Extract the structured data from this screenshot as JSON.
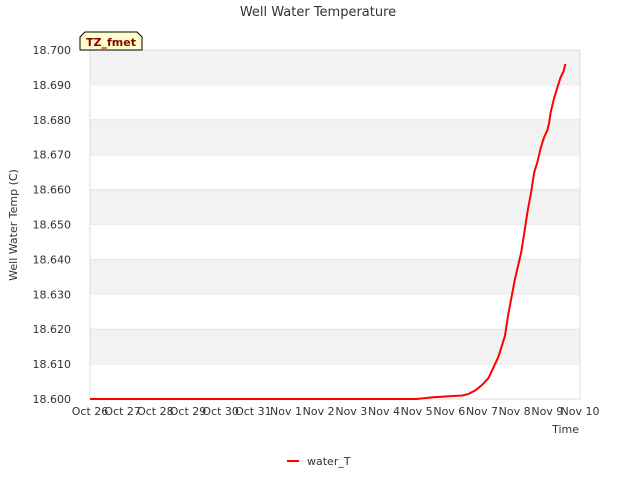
{
  "colors": {
    "line": "#ff0000",
    "band": "#f2f2f2",
    "badge_bg": "#ffffcc",
    "badge_text": "#8b0000"
  },
  "chart_data": {
    "type": "line",
    "title": "Well Water Temperature",
    "xlabel": "Time",
    "ylabel": "Well Water Temp (C)",
    "site_badge": "TZ_fmet",
    "x_ticks": [
      "Oct 26",
      "Oct 27",
      "Oct 28",
      "Oct 29",
      "Oct 30",
      "Oct 31",
      "Nov 1",
      "Nov 2",
      "Nov 3",
      "Nov 4",
      "Nov 5",
      "Nov 6",
      "Nov 7",
      "Nov 8",
      "Nov 9",
      "Nov 10"
    ],
    "y_ticks": [
      "18.600",
      "18.610",
      "18.620",
      "18.630",
      "18.640",
      "18.650",
      "18.660",
      "18.670",
      "18.680",
      "18.690",
      "18.700"
    ],
    "xlim_days": [
      0,
      15
    ],
    "ylim": [
      18.6,
      18.7
    ],
    "grid": "horizontal bands",
    "legend": "bottom-center",
    "series": [
      {
        "name": "water_T",
        "x_days": [
          0,
          10,
          10.5,
          11.0,
          11.4,
          11.6,
          11.8,
          12.0,
          12.2,
          12.35,
          12.5,
          12.7,
          12.8,
          12.9,
          13.0,
          13.1,
          13.2,
          13.3,
          13.4,
          13.5,
          13.55,
          13.6,
          13.7,
          13.8,
          13.9,
          14.0,
          14.05,
          14.1,
          14.2,
          14.3,
          14.4,
          14.5,
          14.55
        ],
        "values": [
          18.6,
          18.6,
          18.6005,
          18.6008,
          18.601,
          18.6015,
          18.6025,
          18.604,
          18.606,
          18.609,
          18.612,
          18.618,
          18.624,
          18.629,
          18.634,
          18.638,
          18.642,
          18.648,
          18.654,
          18.659,
          18.662,
          18.665,
          18.668,
          18.672,
          18.675,
          18.677,
          18.679,
          18.682,
          18.686,
          18.689,
          18.692,
          18.694,
          18.696
        ]
      }
    ]
  }
}
